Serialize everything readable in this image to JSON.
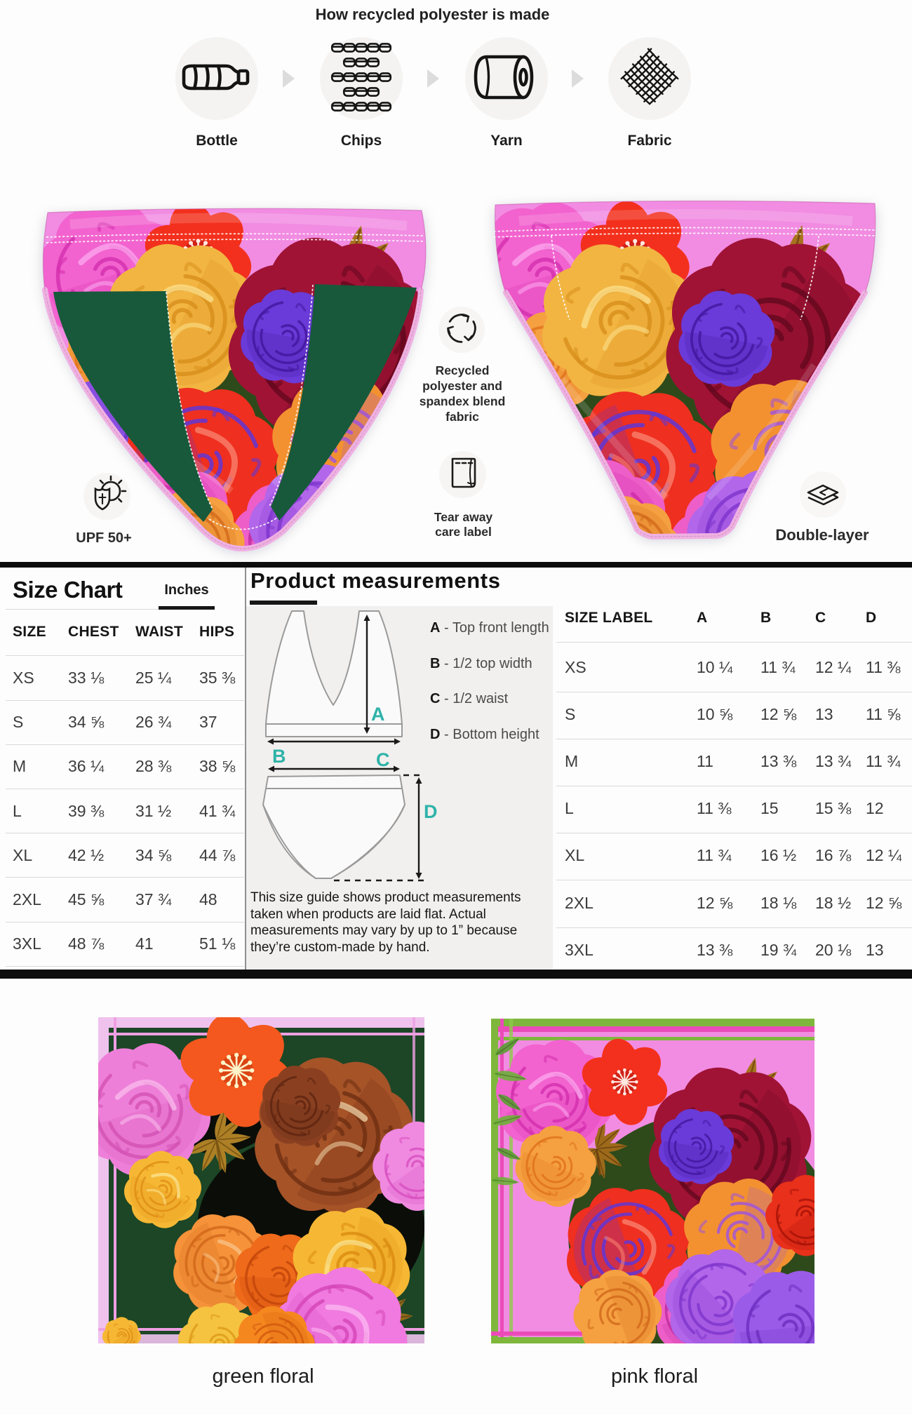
{
  "process": {
    "title": "How recycled polyester is made",
    "steps": [
      {
        "label": "Bottle",
        "icon": "bottle-icon"
      },
      {
        "label": "Chips",
        "icon": "chips-icon"
      },
      {
        "label": "Yarn",
        "icon": "yarn-icon"
      },
      {
        "label": "Fabric",
        "icon": "fabric-icon"
      }
    ]
  },
  "features": {
    "upf": {
      "label": "UPF 50+",
      "icon": "sun-shield-icon"
    },
    "recycled": {
      "label": "Recycled\npolyester and\nspandex blend\nfabric",
      "icon": "recycle-icon"
    },
    "tear_label": {
      "label": "Tear away\ncare label",
      "icon": "care-label-icon"
    },
    "double_layer": {
      "label": "Double-layer",
      "icon": "layers-icon"
    }
  },
  "size_chart": {
    "title": "Size Chart",
    "unit_tab": "Inches",
    "columns": [
      "SIZE",
      "CHEST",
      "WAIST",
      "HIPS"
    ],
    "rows": [
      {
        "size": "XS",
        "chest": "33 ⅛",
        "waist": "25 ¼",
        "hips": "35 ⅜"
      },
      {
        "size": "S",
        "chest": "34 ⅝",
        "waist": "26 ¾",
        "hips": "37"
      },
      {
        "size": "M",
        "chest": "36 ¼",
        "waist": "28 ⅜",
        "hips": "38 ⅝"
      },
      {
        "size": "L",
        "chest": "39 ⅜",
        "waist": "31 ½",
        "hips": "41 ¾"
      },
      {
        "size": "XL",
        "chest": "42 ½",
        "waist": "34 ⅝",
        "hips": "44 ⅞"
      },
      {
        "size": "2XL",
        "chest": "45 ⅝",
        "waist": "37 ¾",
        "hips": "48"
      },
      {
        "size": "3XL",
        "chest": "48 ⅞",
        "waist": "41",
        "hips": "51 ⅛"
      }
    ]
  },
  "product_measurements": {
    "title": "Product measurements",
    "legend": [
      {
        "key": "A",
        "label": "- Top front length"
      },
      {
        "key": "B",
        "label": "- 1/2 top width"
      },
      {
        "key": "C",
        "label": "- 1/2 waist"
      },
      {
        "key": "D",
        "label": "- Bottom height"
      }
    ],
    "note": "This size guide shows product measurements\ntaken when products are laid flat. Actual\nmeasurements may vary by up to 1” because\nthey’re custom-made by hand."
  },
  "measurement_table": {
    "columns": [
      "SIZE LABEL",
      "A",
      "B",
      "C",
      "D"
    ],
    "rows": [
      {
        "label": "XS",
        "a": "10 ¼",
        "b": "11 ¾",
        "c": "12 ¼",
        "d": "11 ⅜"
      },
      {
        "label": "S",
        "a": "10 ⅝",
        "b": "12 ⅝",
        "c": "13",
        "d": "11 ⅝"
      },
      {
        "label": "M",
        "a": "11",
        "b": "13 ⅜",
        "c": "13 ¾",
        "d": "11 ¾"
      },
      {
        "label": "L",
        "a": "11 ⅜",
        "b": "15",
        "c": "15 ⅜",
        "d": "12"
      },
      {
        "label": "XL",
        "a": "11 ¾",
        "b": "16 ½",
        "c": "16 ⅞",
        "d": "12 ¼"
      },
      {
        "label": "2XL",
        "a": "12 ⅝",
        "b": "18 ⅛",
        "c": "18 ½",
        "d": "12 ⅝"
      },
      {
        "label": "3XL",
        "a": "13 ⅜",
        "b": "19 ¾",
        "c": "20 ⅛",
        "d": "13"
      }
    ]
  },
  "swatches": [
    {
      "name": "green floral"
    },
    {
      "name": "pink floral"
    }
  ],
  "colors": {
    "accent_teal": "#2fb3a9",
    "fabric_pink": "#f190dc",
    "lining_green": "#17593a",
    "swatch_green_bg": "#1c4626",
    "swatch_pink_bg": "#f18ce2",
    "bar_black": "#0d0d0d"
  }
}
